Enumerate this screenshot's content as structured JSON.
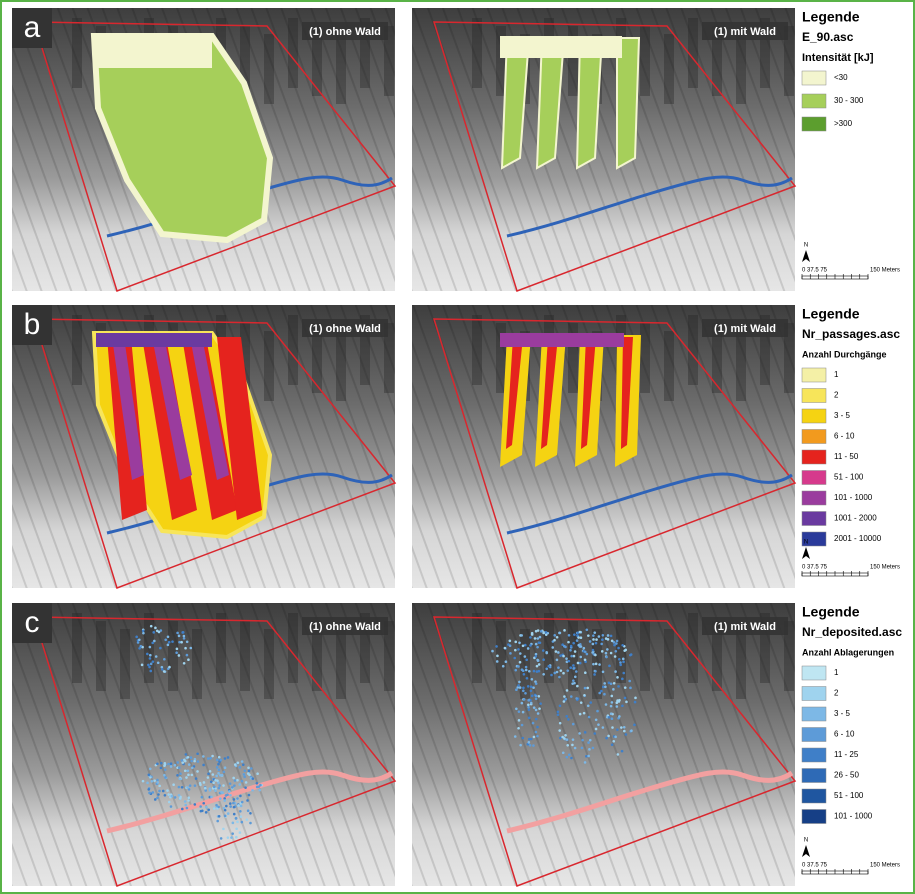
{
  "rows": [
    {
      "label": "a",
      "panels": [
        {
          "tag": "(1) ohne Wald"
        },
        {
          "tag": "(1) mit Wald"
        }
      ],
      "legend": {
        "title": "Legende",
        "file": "E_90.asc",
        "field": "Intensität [kJ]",
        "items": [
          {
            "label": "<30",
            "color": "#f3f5cf"
          },
          {
            "label": "30 - 300",
            "color": "#a6cf5a"
          },
          {
            "label": ">300",
            "color": "#5c9e2e"
          }
        ]
      },
      "scale": {
        "north": "N",
        "ticks": "0 37.5 75",
        "unit": "150 Meters"
      }
    },
    {
      "label": "b",
      "panels": [
        {
          "tag": "(1) ohne Wald"
        },
        {
          "tag": "(1) mit Wald"
        }
      ],
      "legend": {
        "title": "Legende",
        "file": "Nr_passages.asc",
        "field": "Anzahl Durchgänge",
        "items": [
          {
            "label": "1",
            "color": "#f4f0a6"
          },
          {
            "label": "2",
            "color": "#f7e55a"
          },
          {
            "label": "3 - 5",
            "color": "#f5d312"
          },
          {
            "label": "6 - 10",
            "color": "#f29a1e"
          },
          {
            "label": "11 - 50",
            "color": "#e5231e"
          },
          {
            "label": "51 - 100",
            "color": "#d63a8c"
          },
          {
            "label": "101 - 1000",
            "color": "#9a3c9e"
          },
          {
            "label": "1001 - 2000",
            "color": "#6a3aa0"
          },
          {
            "label": "2001 - 10000",
            "color": "#2a3a9a"
          }
        ]
      },
      "scale": {
        "north": "N",
        "ticks": "0 37.5 75",
        "unit": "150 Meters"
      }
    },
    {
      "label": "c",
      "panels": [
        {
          "tag": "(1) ohne Wald"
        },
        {
          "tag": "(1) mit Wald"
        }
      ],
      "legend": {
        "title": "Legende",
        "file": "Nr_deposited.asc",
        "field": "Anzahl Ablagerungen",
        "items": [
          {
            "label": "1",
            "color": "#bfe6f2"
          },
          {
            "label": "2",
            "color": "#9fd3ee"
          },
          {
            "label": "3 - 5",
            "color": "#7db8e6"
          },
          {
            "label": "6 - 10",
            "color": "#5d9bd8"
          },
          {
            "label": "11 - 25",
            "color": "#3f7fc8"
          },
          {
            "label": "26 - 50",
            "color": "#2e6ab6"
          },
          {
            "label": "51 - 100",
            "color": "#1f56a0"
          },
          {
            "label": "101 - 1000",
            "color": "#163f86"
          }
        ]
      },
      "scale": {
        "north": "N",
        "ticks": "0 37.5 75",
        "unit": "150 Meters"
      }
    }
  ]
}
